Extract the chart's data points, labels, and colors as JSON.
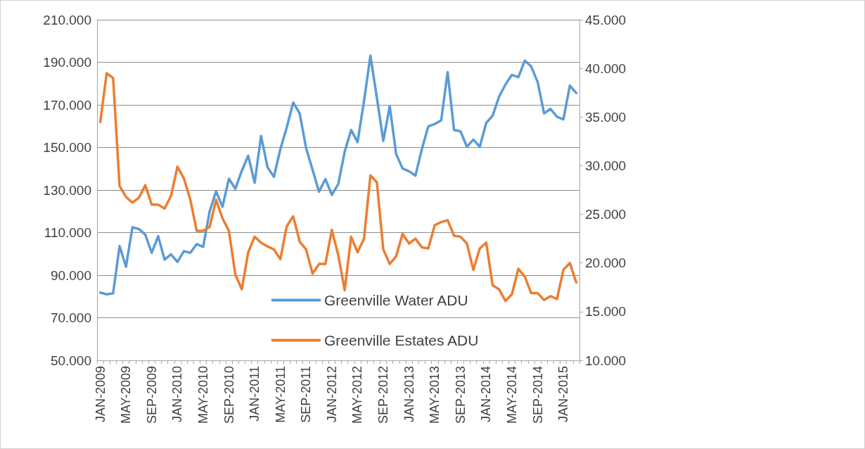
{
  "chart_data": {
    "type": "line",
    "categories": [
      "JAN-2009",
      null,
      null,
      null,
      "MAY-2009",
      null,
      null,
      null,
      "SEP-2009",
      null,
      null,
      null,
      "JAN-2010",
      null,
      null,
      null,
      "MAY-2010",
      null,
      null,
      null,
      "SEP-2010",
      null,
      null,
      null,
      "JAN-2011",
      null,
      null,
      null,
      "MAY-2011",
      null,
      null,
      null,
      "SEP-2011",
      null,
      null,
      null,
      "JAN-2012",
      null,
      null,
      null,
      "MAY-2012",
      null,
      null,
      null,
      "SEP-2012",
      null,
      null,
      null,
      "JAN-2013",
      null,
      null,
      null,
      "MAY-2013",
      null,
      null,
      null,
      "SEP-2013",
      null,
      null,
      null,
      "JAN-2014",
      null,
      null,
      null,
      "MAY-2014",
      null,
      null,
      null,
      "SEP-2014",
      null,
      null,
      null,
      "JAN-2015",
      null,
      null
    ],
    "series": [
      {
        "name": "Greenville Water ADU",
        "color": "#5b9bd5",
        "values": [
          81.8,
          81.0,
          81.5,
          103.7,
          94,
          112.5,
          111.7,
          109,
          100.5,
          108.3,
          97.3,
          99.8,
          96.2,
          101.3,
          100.5,
          104.6,
          103.3,
          119.9,
          129.4,
          122.1,
          135.3,
          130.6,
          139,
          146.1,
          133.4,
          155.4,
          140.7,
          136.2,
          149.2,
          159.5,
          171.1,
          166,
          149.7,
          139.6,
          129.2,
          135.1,
          127.7,
          132.8,
          148,
          158.2,
          152.5,
          171.7,
          193.1,
          173.4,
          153.1,
          169.4,
          146.9,
          140.1,
          138.8,
          136.8,
          149.2,
          159.9,
          161,
          162.7,
          185.4,
          158.2,
          157.6,
          150.3,
          153.7,
          150.3,
          161.5,
          164.9,
          173.9,
          179.6,
          184.1,
          183,
          190.8,
          188,
          180.7,
          166,
          168.1,
          164.4,
          163.2,
          179,
          175.6
        ]
      },
      {
        "name": "Greenville Estates ADU",
        "color": "#ed7d31",
        "axis": "y2",
        "values": [
          34.5,
          39.5,
          39.0,
          27.9,
          26.8,
          26.2,
          26.7,
          28.0,
          26.0,
          26.0,
          25.6,
          26.9,
          29.9,
          28.7,
          26.5,
          23.3,
          23.3,
          23.7,
          26.5,
          24.6,
          23.3,
          18.8,
          17.3,
          21.1,
          22.7,
          22.1,
          21.7,
          21.4,
          20.4,
          23.8,
          24.8,
          22.2,
          21.4,
          18.9,
          19.9,
          19.9,
          23.4,
          20.8,
          17.2,
          22.7,
          21.1,
          22.5,
          29.0,
          28.3,
          21.4,
          19.9,
          20.7,
          23.0,
          22.0,
          22.5,
          21.6,
          21.5,
          23.9,
          24.2,
          24.4,
          22.8,
          22.7,
          22.0,
          19.3,
          21.5,
          22.1,
          17.7,
          17.3,
          16.1,
          16.8,
          19.4,
          18.6,
          16.9,
          16.9,
          16.2,
          16.6,
          16.3,
          19.3,
          20.0,
          18.0
        ]
      }
    ],
    "ylim": [
      50,
      210
    ],
    "yticks": [
      {
        "value": 50,
        "label": "50.000"
      },
      {
        "value": 70,
        "label": "70.000"
      },
      {
        "value": 90,
        "label": "90.000"
      },
      {
        "value": 110,
        "label": "110.000"
      },
      {
        "value": 130,
        "label": "130.000"
      },
      {
        "value": 150,
        "label": "150.000"
      },
      {
        "value": 170,
        "label": "170.000"
      },
      {
        "value": 190,
        "label": "190.000"
      },
      {
        "value": 210,
        "label": "210.000"
      }
    ],
    "y2lim": [
      10,
      45
    ],
    "y2ticks": [
      {
        "value": 10,
        "label": "10.000"
      },
      {
        "value": 15,
        "label": "15.000"
      },
      {
        "value": 20,
        "label": "20.000"
      },
      {
        "value": 25,
        "label": "25.000"
      },
      {
        "value": 30,
        "label": "30.000"
      },
      {
        "value": 35,
        "label": "35.000"
      },
      {
        "value": 40,
        "label": "40.000"
      },
      {
        "value": 45,
        "label": "45.000"
      }
    ],
    "grid": "y",
    "legend": "bottom",
    "marker": "none",
    "line_style": "solid"
  }
}
